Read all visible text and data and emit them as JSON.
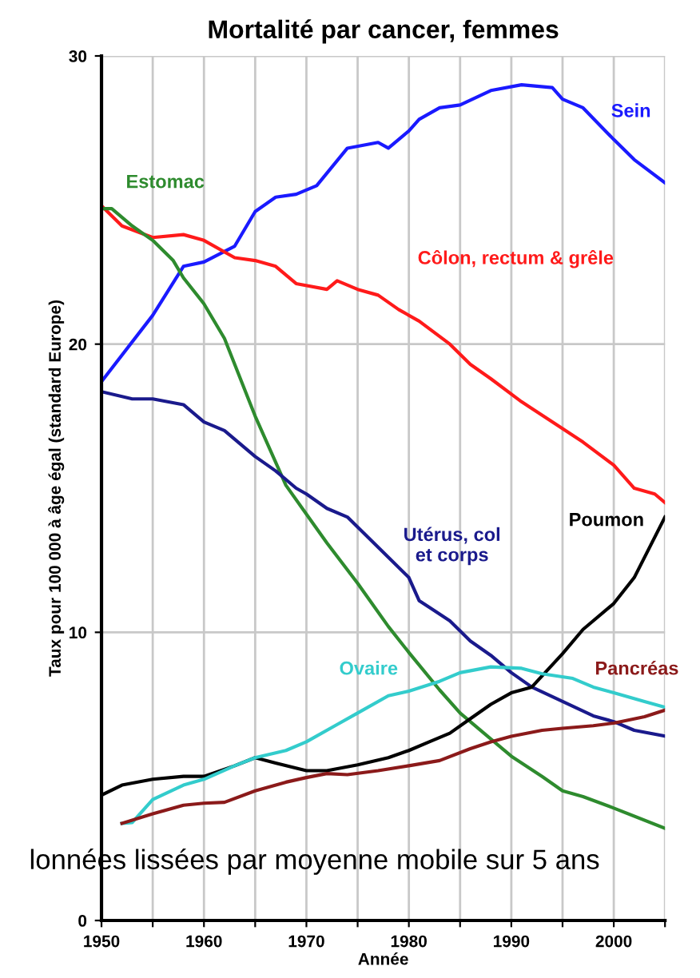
{
  "chart_data": {
    "type": "line",
    "title": "Mortalité par cancer, femmes",
    "xlabel": "Année",
    "ylabel": "Taux pour 100 000 à âge égal (standard Europe)",
    "xlim": [
      1950,
      2005
    ],
    "ylim": [
      0,
      30
    ],
    "xticks": [
      1950,
      {
        "value": 1955,
        "label": null
      },
      1960,
      {
        "value": 1965,
        "label": null
      },
      1970,
      {
        "value": 1975,
        "label": null
      },
      1980,
      {
        "value": 1985,
        "label": null
      },
      1990,
      {
        "value": 1995,
        "label": null
      },
      2000,
      {
        "value": 2005,
        "label": null
      }
    ],
    "yticks": [
      0,
      10,
      20,
      30
    ],
    "grid": true,
    "legend": false,
    "marker": "none",
    "line_style": "solid",
    "annotations": [
      "lonnées lissées par moyenne mobile sur 5 ans"
    ],
    "series": [
      {
        "name": "Sein",
        "color": "#1a1aff",
        "x": [
          1950,
          1955,
          1958,
          1960,
          1963,
          1965,
          1967,
          1969,
          1971,
          1974,
          1977,
          1978,
          1980,
          1981,
          1983,
          1985,
          1988,
          1991,
          1994,
          1995,
          1997,
          2000,
          2002,
          2005
        ],
        "values": [
          18.7,
          21.0,
          22.7,
          22.85,
          23.4,
          24.6,
          25.1,
          25.2,
          25.5,
          26.8,
          27.0,
          26.8,
          27.4,
          27.8,
          28.2,
          28.3,
          28.8,
          29.0,
          28.9,
          28.5,
          28.2,
          27.1,
          26.4,
          25.6
        ]
      },
      {
        "name": "Côlon, rectum & grêle",
        "color": "#ff1a1a",
        "x": [
          1950,
          1952,
          1955,
          1958,
          1960,
          1963,
          1965,
          1967,
          1969,
          1972,
          1973,
          1975,
          1977,
          1979,
          1981,
          1984,
          1986,
          1988,
          1991,
          1994,
          1997,
          2000,
          2002,
          2004,
          2005
        ],
        "values": [
          24.8,
          24.1,
          23.7,
          23.8,
          23.6,
          23.0,
          22.9,
          22.7,
          22.1,
          21.9,
          22.2,
          21.9,
          21.7,
          21.2,
          20.8,
          20.0,
          19.3,
          18.8,
          18.0,
          17.3,
          16.6,
          15.8,
          15.0,
          14.8,
          14.5
        ]
      },
      {
        "name": "Estomac",
        "color": "#2e8b2e",
        "x": [
          1950,
          1951,
          1953,
          1955,
          1957,
          1958,
          1960,
          1962,
          1965,
          1968,
          1970,
          1972,
          1975,
          1978,
          1980,
          1983,
          1985,
          1988,
          1990,
          1993,
          1995,
          1997,
          2000,
          2005
        ],
        "values": [
          24.7,
          24.7,
          24.1,
          23.6,
          22.9,
          22.3,
          21.4,
          20.2,
          17.5,
          15.1,
          14.1,
          13.1,
          11.7,
          10.2,
          9.3,
          8.0,
          7.2,
          6.3,
          5.7,
          5.0,
          4.5,
          4.3,
          3.9,
          3.2
        ]
      },
      {
        "name": "Utérus, col\net corps",
        "color": "#1a1a8c",
        "x": [
          1950,
          1953,
          1955,
          1958,
          1960,
          1962,
          1965,
          1967,
          1969,
          1970,
          1972,
          1974,
          1976,
          1978,
          1980,
          1981,
          1984,
          1986,
          1988,
          1990,
          1992,
          1995,
          1998,
          2000,
          2002,
          2005
        ],
        "values": [
          18.35,
          18.1,
          18.1,
          17.9,
          17.3,
          17.0,
          16.1,
          15.6,
          15.0,
          14.8,
          14.3,
          14.0,
          13.3,
          12.6,
          11.9,
          11.1,
          10.4,
          9.7,
          9.2,
          8.6,
          8.1,
          7.6,
          7.1,
          6.9,
          6.6,
          6.4
        ]
      },
      {
        "name": "Poumon",
        "color": "#000000",
        "x": [
          1950,
          1952,
          1955,
          1958,
          1960,
          1963,
          1965,
          1967,
          1970,
          1972,
          1975,
          1978,
          1980,
          1982,
          1984,
          1986,
          1988,
          1990,
          1992,
          1995,
          1997,
          2000,
          2002,
          2005
        ],
        "values": [
          4.35,
          4.7,
          4.9,
          5.0,
          5.0,
          5.37,
          5.65,
          5.46,
          5.2,
          5.2,
          5.4,
          5.65,
          5.9,
          6.2,
          6.5,
          7.0,
          7.5,
          7.9,
          8.1,
          9.26,
          10.1,
          11.0,
          11.9,
          14.0
        ]
      },
      {
        "name": "Ovaire",
        "color": "#33cccc",
        "x": [
          1952,
          1953,
          1955,
          1958,
          1960,
          1963,
          1965,
          1968,
          1970,
          1973,
          1975,
          1978,
          1980,
          1983,
          1985,
          1988,
          1991,
          1993,
          1996,
          1998,
          2000,
          2003,
          2005
        ],
        "values": [
          3.37,
          3.4,
          4.2,
          4.7,
          4.9,
          5.37,
          5.65,
          5.9,
          6.2,
          6.8,
          7.2,
          7.8,
          7.96,
          8.3,
          8.6,
          8.8,
          8.75,
          8.56,
          8.4,
          8.1,
          7.9,
          7.6,
          7.4
        ]
      },
      {
        "name": "Pancréas",
        "color": "#8b1a1a",
        "x": [
          1952,
          1955,
          1958,
          1960,
          1962,
          1965,
          1968,
          1970,
          1972,
          1974,
          1977,
          1980,
          1983,
          1986,
          1988,
          1990,
          1993,
          1995,
          1998,
          2000,
          2003,
          2005
        ],
        "values": [
          3.37,
          3.7,
          4.0,
          4.07,
          4.1,
          4.5,
          4.8,
          4.96,
          5.1,
          5.06,
          5.2,
          5.37,
          5.55,
          5.96,
          6.2,
          6.39,
          6.6,
          6.67,
          6.76,
          6.85,
          7.07,
          7.3
        ]
      }
    ]
  }
}
